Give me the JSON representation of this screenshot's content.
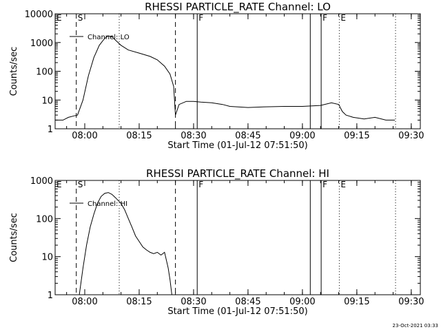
{
  "chart_data": [
    {
      "type": "line",
      "title": "RHESSI PARTICLE_RATE Channel: LO",
      "xlabel": "Start Time (01-Jul-12 07:51:50)",
      "ylabel": "Counts/sec",
      "yscale": "log",
      "ylim": [
        1,
        10000
      ],
      "xlim": [
        "07:51:50",
        "09:32:30"
      ],
      "x_ticks": [
        "08:00",
        "08:15",
        "08:30",
        "08:45",
        "09:00",
        "09:15",
        "09:30"
      ],
      "y_ticks": [
        "1",
        "10",
        "100",
        "1000",
        "10000"
      ],
      "legend": {
        "label": "Channel: LO",
        "position": "top-left"
      },
      "markers": [
        {
          "label": "E",
          "time": "07:51:50",
          "style": "dotted"
        },
        {
          "label": "S",
          "time": "07:57:40",
          "style": "dashed"
        },
        {
          "label": "",
          "time": "08:09:30",
          "style": "dotted"
        },
        {
          "label": "",
          "time": "08:25:00",
          "style": "dashed"
        },
        {
          "label": "F",
          "time": "08:31:00",
          "style": "solid"
        },
        {
          "label": "",
          "time": "09:02:10",
          "style": "solid"
        },
        {
          "label": "F",
          "time": "09:05:10",
          "style": "solid"
        },
        {
          "label": "E",
          "time": "09:10:10",
          "style": "dotted"
        },
        {
          "label": "",
          "time": "09:25:40",
          "style": "dotted"
        }
      ],
      "series": [
        {
          "name": "Channel: LO",
          "points": [
            [
              "07:51:50",
              2
            ],
            [
              "07:54:00",
              2
            ],
            [
              "07:55:30",
              2.5
            ],
            [
              "07:57:00",
              2.8
            ],
            [
              "07:58:00",
              3
            ],
            [
              "07:59:30",
              10
            ],
            [
              "08:01:00",
              70
            ],
            [
              "08:02:30",
              300
            ],
            [
              "08:04:00",
              800
            ],
            [
              "08:05:30",
              1400
            ],
            [
              "08:06:30",
              1700
            ],
            [
              "08:07:30",
              1600
            ],
            [
              "08:08:30",
              1200
            ],
            [
              "08:10:00",
              800
            ],
            [
              "08:12:00",
              550
            ],
            [
              "08:15:00",
              430
            ],
            [
              "08:18:00",
              330
            ],
            [
              "08:20:00",
              250
            ],
            [
              "08:22:00",
              150
            ],
            [
              "08:23:30",
              80
            ],
            [
              "08:24:30",
              30
            ],
            [
              "08:25:00",
              3
            ],
            [
              "08:26:00",
              7
            ],
            [
              "08:28:00",
              9
            ],
            [
              "08:30:00",
              9
            ],
            [
              "08:32:00",
              8.5
            ],
            [
              "08:35:00",
              8
            ],
            [
              "08:38:00",
              7
            ],
            [
              "08:40:00",
              6
            ],
            [
              "08:45:00",
              5.5
            ],
            [
              "08:50:00",
              5.8
            ],
            [
              "08:55:00",
              6
            ],
            [
              "09:00:00",
              6
            ],
            [
              "09:05:00",
              6.5
            ],
            [
              "09:08:00",
              8
            ],
            [
              "09:10:00",
              7
            ],
            [
              "09:11:00",
              4
            ],
            [
              "09:12:00",
              3
            ],
            [
              "09:14:00",
              2.5
            ],
            [
              "09:17:00",
              2.2
            ],
            [
              "09:20:00",
              2.5
            ],
            [
              "09:23:00",
              2
            ],
            [
              "09:25:30",
              2
            ]
          ]
        }
      ]
    },
    {
      "type": "line",
      "title": "RHESSI PARTICLE_RATE Channel: HI",
      "xlabel": "Start Time (01-Jul-12 07:51:50)",
      "ylabel": "Counts/sec",
      "yscale": "log",
      "ylim": [
        1,
        1000
      ],
      "xlim": [
        "07:51:50",
        "09:32:30"
      ],
      "x_ticks": [
        "08:00",
        "08:15",
        "08:30",
        "08:45",
        "09:00",
        "09:15",
        "09:30"
      ],
      "y_ticks": [
        "1",
        "10",
        "100",
        "1000"
      ],
      "legend": {
        "label": "Channel: HI",
        "position": "top-left"
      },
      "markers": [
        {
          "label": "E",
          "time": "07:51:50",
          "style": "dotted"
        },
        {
          "label": "S",
          "time": "07:57:40",
          "style": "dashed"
        },
        {
          "label": "",
          "time": "08:09:30",
          "style": "dotted"
        },
        {
          "label": "",
          "time": "08:25:00",
          "style": "dashed"
        },
        {
          "label": "F",
          "time": "08:31:00",
          "style": "solid"
        },
        {
          "label": "",
          "time": "09:02:10",
          "style": "solid"
        },
        {
          "label": "F",
          "time": "09:05:10",
          "style": "solid"
        },
        {
          "label": "E",
          "time": "09:10:10",
          "style": "dotted"
        },
        {
          "label": "",
          "time": "09:25:40",
          "style": "dotted"
        }
      ],
      "series": [
        {
          "name": "Channel: HI",
          "points": [
            [
              "07:58:30",
              1
            ],
            [
              "07:59:30",
              5
            ],
            [
              "08:00:30",
              20
            ],
            [
              "08:01:30",
              60
            ],
            [
              "08:02:30",
              130
            ],
            [
              "08:03:30",
              250
            ],
            [
              "08:04:30",
              380
            ],
            [
              "08:05:30",
              460
            ],
            [
              "08:06:30",
              480
            ],
            [
              "08:07:30",
              430
            ],
            [
              "08:08:30",
              350
            ],
            [
              "08:10:00",
              250
            ],
            [
              "08:11:00",
              170
            ],
            [
              "08:12:00",
              100
            ],
            [
              "08:13:00",
              60
            ],
            [
              "08:14:00",
              35
            ],
            [
              "08:15:00",
              25
            ],
            [
              "08:16:00",
              18
            ],
            [
              "08:17:00",
              15
            ],
            [
              "08:18:00",
              13
            ],
            [
              "08:19:00",
              12
            ],
            [
              "08:20:00",
              13
            ],
            [
              "08:21:00",
              11
            ],
            [
              "08:22:00",
              13
            ],
            [
              "08:22:30",
              8
            ],
            [
              "08:23:00",
              5
            ],
            [
              "08:23:30",
              2.5
            ],
            [
              "08:24:00",
              1
            ]
          ]
        }
      ]
    }
  ],
  "footer": {
    "timestamp": "23-Oct-2021 03:33"
  }
}
